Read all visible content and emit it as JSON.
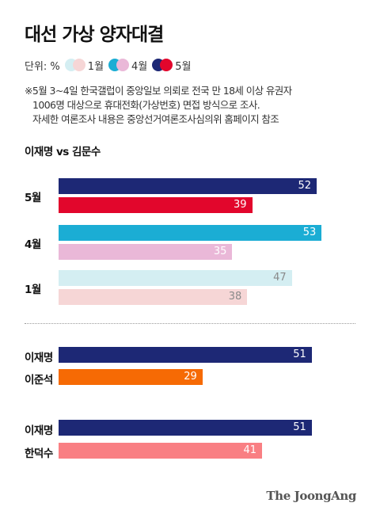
{
  "header": {
    "title": "대선 가상 양자대결",
    "unit": "단위: %",
    "legend": [
      {
        "label": "1월",
        "colors": [
          "#d4eef2",
          "#f6d6d6"
        ]
      },
      {
        "label": "4월",
        "colors": [
          "#1badd4",
          "#eab8d8"
        ]
      },
      {
        "label": "5월",
        "colors": [
          "#1d2875",
          "#e2062c"
        ]
      }
    ],
    "note": [
      "※5월 3~4일 한국갤럽이 중앙일보 의뢰로 전국 만 18세 이상 유권자",
      "1006명 대상으로 휴대전화(가상번호) 면접 방식으로 조사.",
      "자세한 여론조사 내용은 중앙선거여론조사심의위 홈페이지 참조"
    ]
  },
  "chart_data": [
    {
      "type": "bar",
      "orientation": "horizontal",
      "title": "이재명 vs 김문수",
      "categories": [
        "5월",
        "4월",
        "1월"
      ],
      "series": [
        {
          "name": "이재명",
          "values": [
            52,
            53,
            47
          ],
          "colors": [
            "#1d2875",
            "#1badd4",
            "#d4eef2"
          ],
          "label_colors": [
            "#ffffff",
            "#ffffff",
            "#8a8a8a"
          ]
        },
        {
          "name": "김문수",
          "values": [
            39,
            35,
            38
          ],
          "colors": [
            "#e2062c",
            "#eab8d8",
            "#f6d6d6"
          ],
          "label_colors": [
            "#ffffff",
            "#ffffff",
            "#8a8a8a"
          ]
        }
      ]
    },
    {
      "type": "bar",
      "orientation": "horizontal",
      "categories": [
        "이재명",
        "이준석"
      ],
      "values": [
        51,
        29
      ],
      "colors": [
        "#1d2875",
        "#f66a04"
      ],
      "label_colors": [
        "#ffffff",
        "#ffffff"
      ]
    },
    {
      "type": "bar",
      "orientation": "horizontal",
      "categories": [
        "이재명",
        "한덕수"
      ],
      "values": [
        51,
        41
      ],
      "colors": [
        "#1d2875",
        "#f97f83"
      ],
      "label_colors": [
        "#ffffff",
        "#ffffff"
      ]
    }
  ],
  "footer": {
    "source": "The JoongAng"
  }
}
